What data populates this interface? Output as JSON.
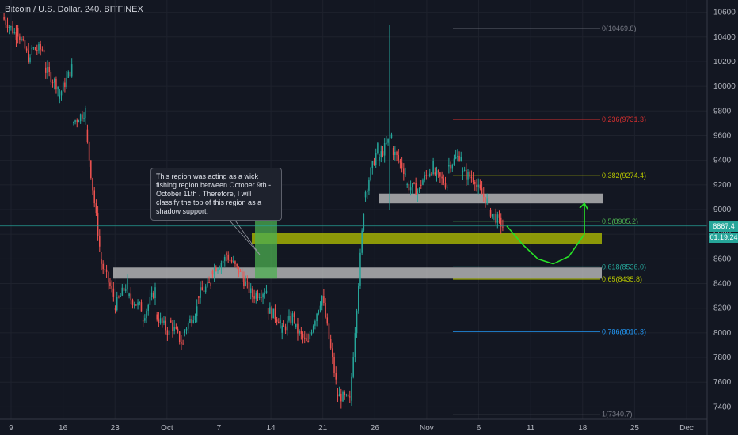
{
  "header": {
    "title": "Bitcoin / U.S. Dollar, 240, BITFINEX"
  },
  "price_tag": {
    "value": "8867.4",
    "countdown": "01:19:24",
    "color": "#26a69a"
  },
  "annotation": {
    "text": "This region was acting as a wick fishing region between October 9th - October 11th . Therefore, I will classify the top of this region as a shadow support."
  },
  "colors": {
    "background": "#131722",
    "up": "#26a69a",
    "down": "#ef5350",
    "grid": "#1e222d",
    "support_zone": "#c8c8c8",
    "highlight_zone": "#b5c400",
    "green_box": "#4caf50",
    "arrow": "#27e327"
  },
  "chart_data": {
    "type": "candlestick",
    "instrument": "Bitcoin / U.S. Dollar",
    "interval": "240",
    "exchange": "BITFINEX",
    "ylim": [
      7300,
      10700
    ],
    "y_ticks": [
      10600,
      10400,
      10200,
      10000,
      9800,
      9600,
      9400,
      9200,
      9000,
      8800,
      8600,
      8400,
      8200,
      8000,
      7800,
      7600,
      7400
    ],
    "x_ticks": [
      "9",
      "16",
      "23",
      "Oct",
      "7",
      "14",
      "21",
      "26",
      "Nov",
      "6",
      "11",
      "18",
      "25",
      "Dec"
    ],
    "last_price": 8867.4,
    "fib_levels": [
      {
        "label": "0(10469.8)",
        "value": 10469.8,
        "color": "#787b86"
      },
      {
        "label": "0.236(9731.3)",
        "value": 9731.3,
        "color": "#d32f2f"
      },
      {
        "label": "0.382(9274.4)",
        "value": 9274.4,
        "color": "#b5c400"
      },
      {
        "label": "0.5(8905.2)",
        "value": 8905.2,
        "color": "#4caf50"
      },
      {
        "label": "0.618(8536.0)",
        "value": 8536.0,
        "color": "#26a69a"
      },
      {
        "label": "0.65(8435.8)",
        "value": 8435.8,
        "color": "#b5c400"
      },
      {
        "label": "0.786(8010.3)",
        "value": 8010.3,
        "color": "#2196f3"
      },
      {
        "label": "1(7340.7)",
        "value": 7340.7,
        "color": "#787b86"
      }
    ],
    "zones": [
      {
        "name": "shadow-support-zone",
        "from": 8440,
        "to": 8530
      },
      {
        "name": "highlight-zone",
        "from": 8720,
        "to": 8810
      },
      {
        "name": "resistance-zone",
        "from": 9050,
        "to": 9130
      }
    ],
    "price_path": [
      [
        10560,
        10420
      ],
      [
        10470,
        10200
      ],
      [
        10300,
        10300
      ],
      [
        10150,
        10000
      ],
      [
        9900,
        10150
      ],
      [
        9700,
        9800
      ],
      [
        9650,
        8700
      ],
      [
        8600,
        8300
      ],
      [
        8200,
        8400
      ],
      [
        8300,
        8200
      ],
      [
        8100,
        8350
      ],
      [
        8150,
        8000
      ],
      [
        8100,
        7900
      ],
      [
        8000,
        8200
      ],
      [
        8300,
        8400
      ],
      [
        8500,
        8600
      ],
      [
        8650,
        8500
      ],
      [
        8500,
        8300
      ],
      [
        8300,
        8350
      ],
      [
        8200,
        8100
      ],
      [
        8000,
        8150
      ],
      [
        8050,
        7900
      ],
      [
        7950,
        8300
      ],
      [
        8300,
        7600
      ],
      [
        7500,
        7450
      ],
      [
        7450,
        9000
      ],
      [
        9100,
        9500
      ],
      [
        9400,
        9600
      ],
      [
        9500,
        9300
      ],
      [
        9200,
        9150
      ],
      [
        9200,
        9350
      ],
      [
        9300,
        9200
      ],
      [
        9350,
        9450
      ],
      [
        9300,
        9250
      ],
      [
        9200,
        9050
      ],
      [
        9000,
        8867
      ]
    ],
    "projection": [
      [
        8867,
        8720
      ],
      [
        8720,
        8600
      ],
      [
        8600,
        8560
      ],
      [
        8560,
        8620
      ],
      [
        8620,
        8800
      ],
      [
        8800,
        9050
      ]
    ]
  }
}
